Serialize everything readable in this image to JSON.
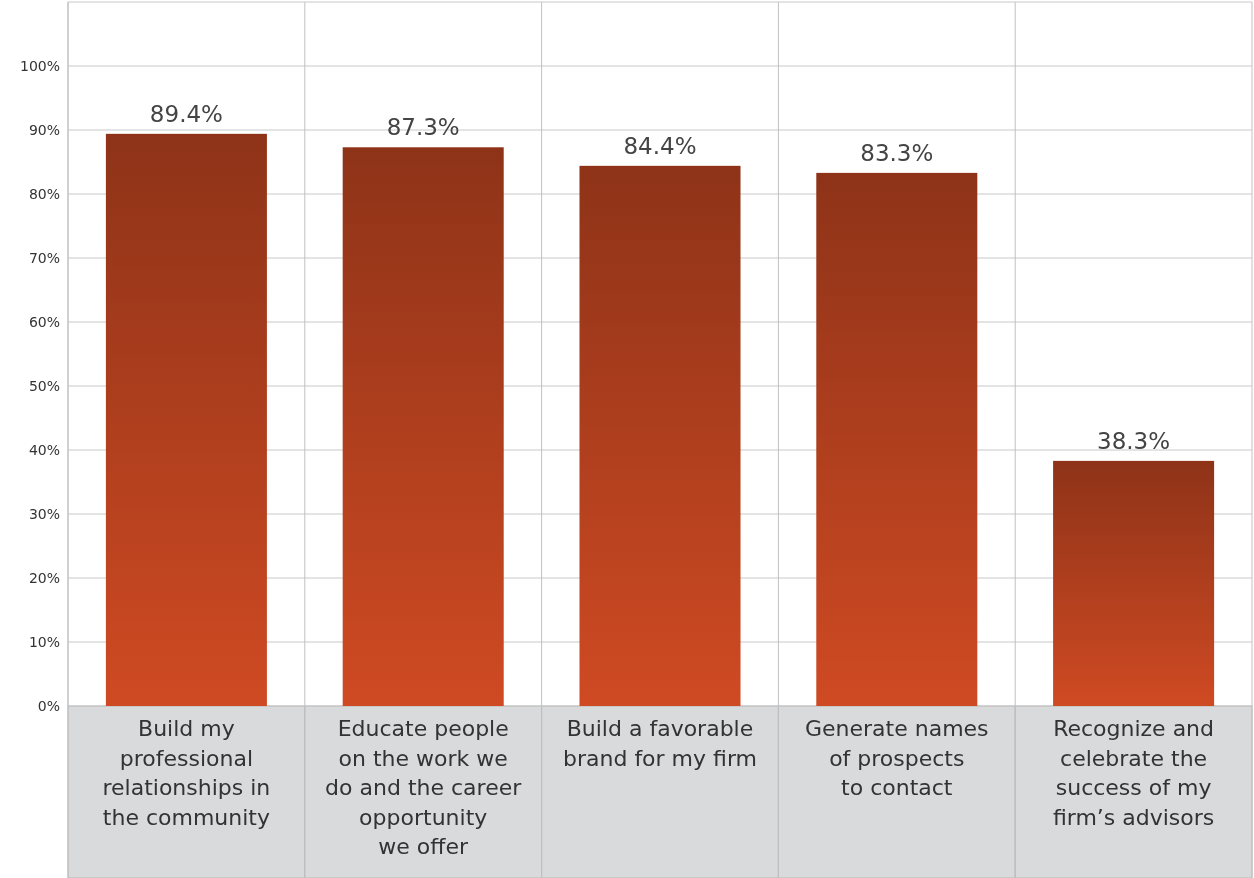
{
  "chart_data": {
    "type": "bar",
    "categories": [
      "Build my\nprofessional\nrelationships in\nthe community",
      "Educate people\non the work we\ndo and the career\nopportunity\nwe offer",
      "Build a favorable\nbrand for my firm",
      "Generate names\nof prospects\nto contact",
      "Recognize and\ncelebrate the\nsuccess of my\nfirm’s advisors"
    ],
    "values": [
      89.4,
      87.3,
      84.4,
      83.3,
      38.3
    ],
    "value_labels": [
      "89.4%",
      "87.3%",
      "84.4%",
      "83.3%",
      "38.3%"
    ],
    "color": "#b03f1e",
    "ylim": [
      0,
      110
    ],
    "yticks": [
      {
        "value": 0,
        "label": "0%"
      },
      {
        "value": 10,
        "label": "10%"
      },
      {
        "value": 20,
        "label": "20%"
      },
      {
        "value": 30,
        "label": "30%"
      },
      {
        "value": 40,
        "label": "40%"
      },
      {
        "value": 50,
        "label": "50%"
      },
      {
        "value": 60,
        "label": "60%"
      },
      {
        "value": 70,
        "label": "70%"
      },
      {
        "value": 80,
        "label": "80%"
      },
      {
        "value": 90,
        "label": "90%"
      },
      {
        "value": 100,
        "label": "100%"
      }
    ],
    "grid": true
  }
}
